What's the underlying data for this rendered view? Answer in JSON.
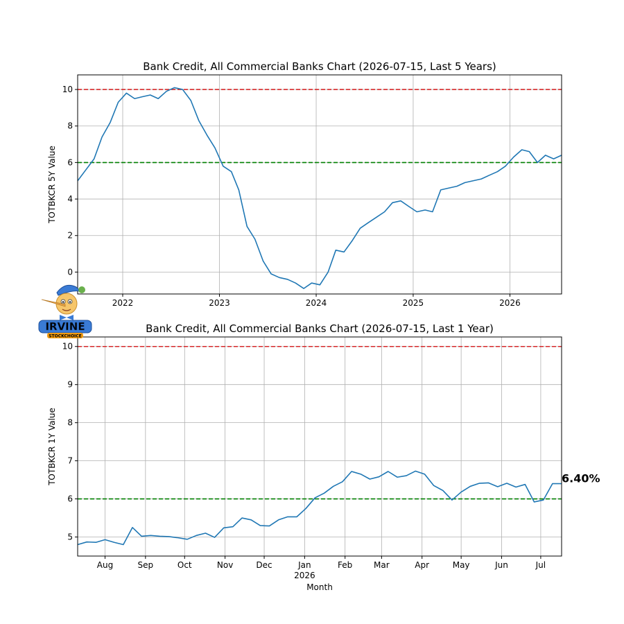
{
  "colors": {
    "series": "#1f77b4",
    "upper_ref": "#d62728",
    "lower_ref": "#008000",
    "grid": "#b0b0b0"
  },
  "logo": {
    "text": "IRVINE",
    "subtext": "STOCKCHOICE"
  },
  "chart_data": [
    {
      "type": "line",
      "title": "Bank Credit, All Commercial Banks Chart (2026-07-15, Last 5 Years)",
      "xlabel": "",
      "ylabel": "TOTBKCR 5Y Value",
      "x_range": [
        "2021-07-15",
        "2026-07-15"
      ],
      "ylim": [
        -1.2,
        10.8
      ],
      "yticks": [
        0,
        2,
        4,
        6,
        8,
        10
      ],
      "xtick_labels": [
        {
          "date": "2022-01-01",
          "label": "2022"
        },
        {
          "date": "2023-01-01",
          "label": "2023"
        },
        {
          "date": "2024-01-01",
          "label": "2024"
        },
        {
          "date": "2025-01-01",
          "label": "2025"
        },
        {
          "date": "2026-01-01",
          "label": "2026"
        }
      ],
      "reference_lines": [
        {
          "y": 10,
          "color": "red",
          "style": "dashed"
        },
        {
          "y": 6,
          "color": "green",
          "style": "dashed"
        }
      ],
      "grid": true,
      "series": [
        {
          "x": [
            "2021-07-15",
            "2021-08-15",
            "2021-09-15",
            "2021-10-15",
            "2021-11-15",
            "2021-12-15",
            "2022-01-15",
            "2022-02-15",
            "2022-03-15",
            "2022-04-15",
            "2022-05-15",
            "2022-06-15",
            "2022-07-15",
            "2022-08-15",
            "2022-09-15",
            "2022-10-15",
            "2022-11-15",
            "2022-12-15",
            "2023-01-15",
            "2023-02-15",
            "2023-03-15",
            "2023-04-15",
            "2023-05-15",
            "2023-06-15",
            "2023-07-15",
            "2023-08-15",
            "2023-09-15",
            "2023-10-15",
            "2023-11-15",
            "2023-12-15",
            "2024-01-15",
            "2024-02-15",
            "2024-03-15",
            "2024-04-15",
            "2024-05-15",
            "2024-06-15",
            "2024-07-15",
            "2024-08-15",
            "2024-09-15",
            "2024-10-15",
            "2024-11-15",
            "2024-12-15",
            "2025-01-15",
            "2025-02-15",
            "2025-03-15",
            "2025-04-15",
            "2025-05-15",
            "2025-06-15",
            "2025-07-15",
            "2025-08-15",
            "2025-09-15",
            "2025-10-15",
            "2025-11-15",
            "2025-12-15",
            "2026-01-15",
            "2026-02-15",
            "2026-03-15",
            "2026-04-15",
            "2026-05-15",
            "2026-06-15",
            "2026-07-15"
          ],
          "y": [
            5.0,
            5.6,
            6.2,
            7.4,
            8.2,
            9.3,
            9.8,
            9.5,
            9.6,
            9.7,
            9.5,
            9.9,
            10.1,
            10.0,
            9.4,
            8.3,
            7.5,
            6.8,
            5.8,
            5.5,
            4.5,
            2.5,
            1.8,
            0.6,
            -0.1,
            -0.3,
            -0.4,
            -0.6,
            -0.9,
            -0.6,
            -0.7,
            0.0,
            1.2,
            1.1,
            1.7,
            2.4,
            2.7,
            3.0,
            3.3,
            3.8,
            3.9,
            3.6,
            3.3,
            3.4,
            3.3,
            4.5,
            4.6,
            4.7,
            4.9,
            5.0,
            5.1,
            5.3,
            5.5,
            5.8,
            6.3,
            6.7,
            6.6,
            6.0,
            6.4,
            6.2,
            6.4
          ]
        }
      ]
    },
    {
      "type": "line",
      "title": "Bank Credit, All Commercial Banks Chart (2026-07-15, Last 1 Year)",
      "xlabel": "Month",
      "ylabel": "TOTBKCR 1Y Value",
      "x_range": [
        "2025-07-11",
        "2026-07-17"
      ],
      "ylim": [
        4.5,
        10.25
      ],
      "yticks": [
        5,
        6,
        7,
        8,
        9,
        10
      ],
      "xtick_labels": [
        {
          "date": "2025-08-01",
          "label": "Aug"
        },
        {
          "date": "2025-09-01",
          "label": "Sep"
        },
        {
          "date": "2025-10-01",
          "label": "Oct"
        },
        {
          "date": "2025-11-01",
          "label": "Nov"
        },
        {
          "date": "2025-12-01",
          "label": "Dec"
        },
        {
          "date": "2026-01-01",
          "label": "Jan",
          "sublabel": "2026"
        },
        {
          "date": "2026-02-01",
          "label": "Feb"
        },
        {
          "date": "2026-03-01",
          "label": "Mar"
        },
        {
          "date": "2026-04-01",
          "label": "Apr"
        },
        {
          "date": "2026-05-01",
          "label": "May"
        },
        {
          "date": "2026-06-01",
          "label": "Jun"
        },
        {
          "date": "2026-07-01",
          "label": "Jul"
        }
      ],
      "reference_lines": [
        {
          "y": 10,
          "color": "red",
          "style": "dashed"
        },
        {
          "y": 6,
          "color": "green",
          "style": "dashed"
        }
      ],
      "grid": true,
      "annotation": {
        "text": "6.40%",
        "date": "2026-07-17",
        "y": 6.4
      },
      "series": [
        {
          "x": [
            "2025-07-11",
            "2025-07-18",
            "2025-07-25",
            "2025-08-01",
            "2025-08-08",
            "2025-08-15",
            "2025-08-22",
            "2025-08-29",
            "2025-09-05",
            "2025-09-12",
            "2025-09-19",
            "2025-09-26",
            "2025-10-03",
            "2025-10-10",
            "2025-10-17",
            "2025-10-24",
            "2025-10-31",
            "2025-11-07",
            "2025-11-14",
            "2025-11-21",
            "2025-11-28",
            "2025-12-05",
            "2025-12-12",
            "2025-12-19",
            "2025-12-26",
            "2026-01-02",
            "2026-01-09",
            "2026-01-16",
            "2026-01-23",
            "2026-01-30",
            "2026-02-06",
            "2026-02-13",
            "2026-02-20",
            "2026-02-27",
            "2026-03-06",
            "2026-03-13",
            "2026-03-20",
            "2026-03-27",
            "2026-04-03",
            "2026-04-10",
            "2026-04-17",
            "2026-04-24",
            "2026-05-01",
            "2026-05-08",
            "2026-05-15",
            "2026-05-22",
            "2026-05-29",
            "2026-06-05",
            "2026-06-12",
            "2026-06-19",
            "2026-06-26",
            "2026-07-03",
            "2026-07-10",
            "2026-07-17"
          ],
          "y": [
            4.8,
            4.87,
            4.86,
            4.93,
            4.86,
            4.8,
            5.25,
            5.02,
            5.04,
            5.02,
            5.01,
            4.98,
            4.94,
            5.04,
            5.1,
            4.99,
            5.24,
            5.27,
            5.5,
            5.45,
            5.3,
            5.29,
            5.45,
            5.53,
            5.53,
            5.75,
            6.03,
            6.15,
            6.33,
            6.45,
            6.72,
            6.65,
            6.52,
            6.58,
            6.72,
            6.57,
            6.61,
            6.73,
            6.65,
            6.35,
            6.22,
            5.97,
            6.18,
            6.33,
            6.41,
            6.42,
            6.32,
            6.41,
            6.31,
            6.38,
            5.92,
            5.97,
            6.4,
            6.4
          ]
        }
      ]
    }
  ]
}
